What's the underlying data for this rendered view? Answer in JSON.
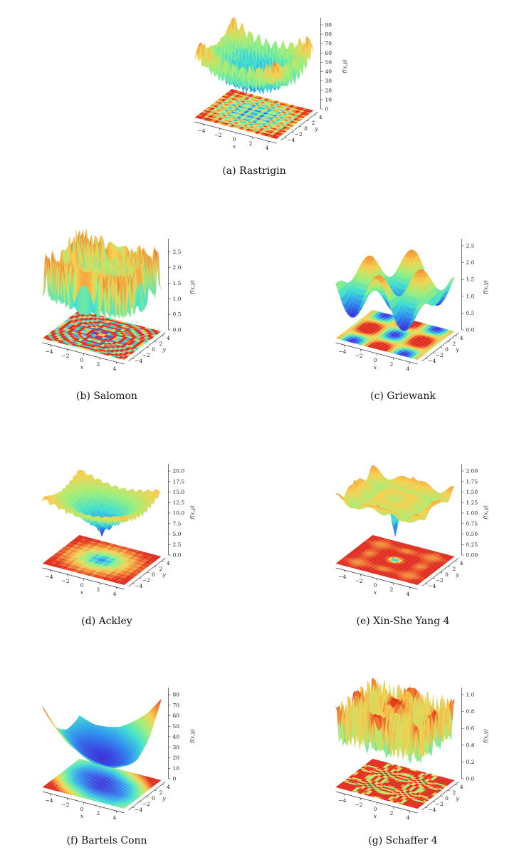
{
  "chart_data": [
    {
      "id": "rastrigin",
      "type": "surface3d",
      "title": "(a) Rastrigin",
      "x_ticks": [
        "−4",
        "−2",
        "0",
        "2",
        "4"
      ],
      "y_ticks": [
        "−4",
        "−2",
        "0",
        "2",
        "4"
      ],
      "z_ticks": [
        "0",
        "10",
        "20",
        "30",
        "40",
        "50",
        "60",
        "70",
        "80",
        "90"
      ],
      "xlabel": "x",
      "ylabel": "y",
      "zlabel": "f(x,y)",
      "zlim": [
        0,
        90
      ],
      "colormap": "rainbow",
      "colors": [
        "#3a2bd9",
        "#2f8ff0",
        "#41e0d0",
        "#9ef07a",
        "#f8d050",
        "#f08030",
        "#e0281a"
      ]
    },
    {
      "id": "salomon",
      "type": "surface3d",
      "title": "(b) Salomon",
      "x_ticks": [
        "−4",
        "−2",
        "0",
        "2",
        "4"
      ],
      "y_ticks": [
        "−4",
        "−2",
        "0",
        "2",
        "4"
      ],
      "z_ticks": [
        "0.0",
        "0.5",
        "1.0",
        "1.5",
        "2.0",
        "2.5"
      ],
      "xlabel": "x",
      "ylabel": "y",
      "zlabel": "f(x,y)",
      "zlim": [
        0,
        2.7
      ],
      "colormap": "rainbow",
      "colors": [
        "#3a2bd9",
        "#2f8ff0",
        "#41e0d0",
        "#9ef07a",
        "#f8d050",
        "#f08030",
        "#e0281a"
      ]
    },
    {
      "id": "griewank",
      "type": "surface3d",
      "title": "(c) Griewank",
      "x_ticks": [
        "−4",
        "−2",
        "0",
        "2",
        "4"
      ],
      "y_ticks": [
        "−4",
        "−2",
        "0",
        "2",
        "4"
      ],
      "z_ticks": [
        "0.0",
        "0.5",
        "1.0",
        "1.5",
        "2.0",
        "2.5"
      ],
      "xlabel": "x",
      "ylabel": "y",
      "zlabel": "f(x,y)",
      "zlim": [
        0,
        2.5
      ],
      "colormap": "rainbow",
      "colors": [
        "#3a2bd9",
        "#2f8ff0",
        "#41e0d0",
        "#9ef07a",
        "#f8d050",
        "#f08030",
        "#e0281a"
      ]
    },
    {
      "id": "ackley",
      "type": "surface3d",
      "title": "(d) Ackley",
      "x_ticks": [
        "−4",
        "−2",
        "0",
        "2",
        "4"
      ],
      "y_ticks": [
        "−4",
        "−2",
        "0",
        "2",
        "4"
      ],
      "z_ticks": [
        "0.0",
        "2.5",
        "5.0",
        "7.5",
        "10.0",
        "12.5",
        "15.0",
        "17.5",
        "20.0"
      ],
      "xlabel": "x",
      "ylabel": "y",
      "zlabel": "f(x,y)",
      "zlim": [
        0,
        20
      ],
      "colormap": "rainbow",
      "colors": [
        "#3a2bd9",
        "#2f8ff0",
        "#41e0d0",
        "#9ef07a",
        "#f8d050",
        "#f08030",
        "#e0281a"
      ]
    },
    {
      "id": "xinsheyang4",
      "type": "surface3d",
      "title": "(e) Xin-She Yang 4",
      "x_ticks": [
        "−4",
        "−2",
        "0",
        "2",
        "4"
      ],
      "y_ticks": [
        "−4",
        "−2",
        "0",
        "2",
        "4"
      ],
      "z_ticks": [
        "0.00",
        "0.25",
        "0.50",
        "0.75",
        "1.00",
        "1.25",
        "1.50",
        "1.75",
        "2.00"
      ],
      "xlabel": "x",
      "ylabel": "y",
      "zlabel": "f(x,y)",
      "zlim": [
        0,
        2
      ],
      "colormap": "rainbow",
      "colors": [
        "#3a2bd9",
        "#2f8ff0",
        "#41e0d0",
        "#9ef07a",
        "#f8d050",
        "#f08030",
        "#e0281a"
      ]
    },
    {
      "id": "bartelsconn",
      "type": "surface3d",
      "title": "(f) Bartels Conn",
      "x_ticks": [
        "−4",
        "−2",
        "0",
        "2",
        "4"
      ],
      "y_ticks": [
        "−4",
        "−2",
        "0",
        "2",
        "4"
      ],
      "z_ticks": [
        "0",
        "10",
        "20",
        "30",
        "40",
        "50",
        "60",
        "70",
        "80"
      ],
      "xlabel": "x",
      "ylabel": "y",
      "zlabel": "f(x,y)",
      "zlim": [
        0,
        80
      ],
      "colormap": "rainbow",
      "colors": [
        "#3a2bd9",
        "#2f8ff0",
        "#41e0d0",
        "#9ef07a",
        "#f8d050",
        "#f08030",
        "#e0281a"
      ]
    },
    {
      "id": "schaffer4",
      "type": "surface3d",
      "title": "(g) Schaffer 4",
      "x_ticks": [
        "−4",
        "−2",
        "0",
        "2",
        "4"
      ],
      "y_ticks": [
        "−4",
        "−2",
        "0",
        "2",
        "4"
      ],
      "z_ticks": [
        "0.0",
        "0.2",
        "0.4",
        "0.6",
        "0.8",
        "1.0"
      ],
      "xlabel": "x",
      "ylabel": "y",
      "zlabel": "f(x,y)",
      "zlim": [
        0,
        1.0
      ],
      "colormap": "rainbow",
      "colors": [
        "#3a2bd9",
        "#2f8ff0",
        "#41e0d0",
        "#9ef07a",
        "#f8d050",
        "#f08030",
        "#e0281a"
      ]
    }
  ]
}
